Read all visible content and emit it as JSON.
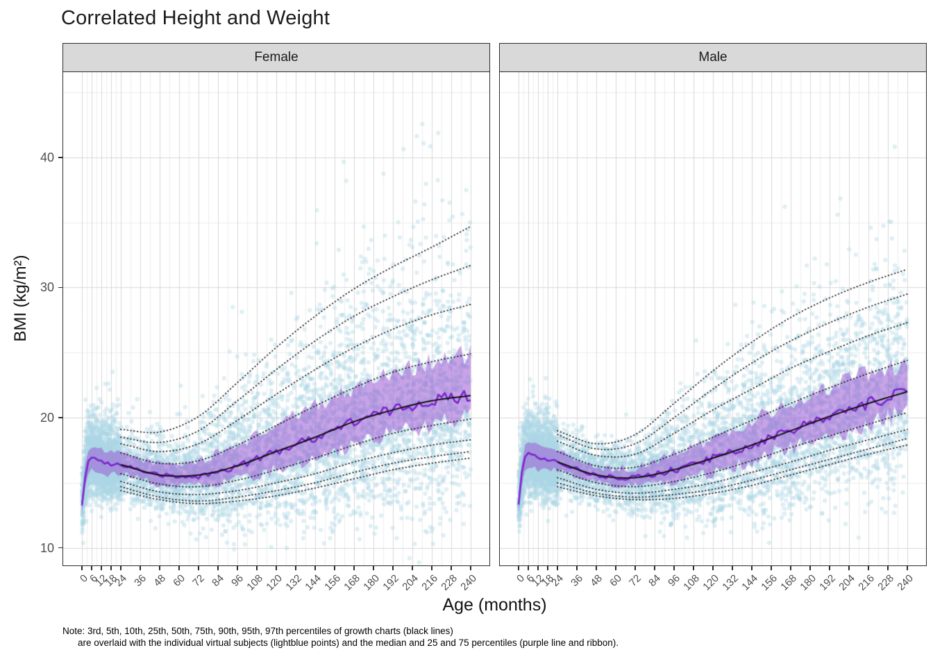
{
  "title": "Correlated Height and Weight",
  "note": {
    "line1": "Note: 3rd, 5th, 10th, 25th, 50th, 75th, 90th, 95th, 97th percentiles of growth charts (black lines)",
    "line2": "are overlaid with the individual virtual subjects (lightblue points) and the median and 25 and 75 percentiles (purple line and ribbon)."
  },
  "chart_data": {
    "type": "scatter",
    "title": "Correlated Height and Weight",
    "xlabel": "Age (months)",
    "ylabel": "BMI (kg/m²)",
    "facets": [
      "Female",
      "Male"
    ],
    "legend": "none",
    "grid": true,
    "x_ticks": [
      0,
      6,
      12,
      18,
      24,
      36,
      48,
      60,
      72,
      84,
      96,
      108,
      120,
      132,
      144,
      156,
      168,
      180,
      192,
      204,
      216,
      228,
      240
    ],
    "y_ticks": [
      10,
      20,
      30,
      40
    ],
    "y_minor_ticks": [
      15,
      25,
      35,
      45
    ],
    "xlim": [
      -12,
      252
    ],
    "ylim": [
      8.6,
      46.6
    ],
    "percentile_labels": [
      "3rd",
      "5th",
      "10th",
      "25th",
      "50th",
      "75th",
      "90th",
      "95th",
      "97th"
    ],
    "percentile_keys": [
      "P3",
      "P5",
      "P10",
      "P25",
      "P50",
      "P75",
      "P90",
      "P95",
      "P97"
    ],
    "percentile_ages": [
      24,
      48,
      72,
      96,
      120,
      144,
      168,
      192,
      216,
      240
    ],
    "percentiles": {
      "Female": {
        "P3": [
          14.4,
          13.7,
          13.4,
          13.6,
          14.0,
          14.6,
          15.3,
          16.0,
          16.5,
          16.9
        ],
        "P5": [
          14.7,
          13.9,
          13.6,
          13.9,
          14.4,
          15.0,
          15.8,
          16.5,
          17.0,
          17.4
        ],
        "P10": [
          15.1,
          14.3,
          14.1,
          14.4,
          15.0,
          15.7,
          16.6,
          17.3,
          17.9,
          18.3
        ],
        "P25": [
          15.7,
          14.9,
          14.7,
          15.2,
          16.0,
          16.9,
          17.9,
          18.8,
          19.4,
          19.9
        ],
        "P50": [
          16.4,
          15.6,
          15.6,
          16.3,
          17.4,
          18.5,
          19.7,
          20.6,
          21.3,
          21.7
        ],
        "P75": [
          17.3,
          16.5,
          16.7,
          17.9,
          19.4,
          20.9,
          22.3,
          23.5,
          24.3,
          24.9
        ],
        "P90": [
          18.0,
          17.4,
          18.0,
          19.8,
          21.8,
          23.7,
          25.4,
          26.8,
          27.9,
          28.7
        ],
        "P95": [
          18.5,
          18.1,
          19.0,
          21.3,
          23.7,
          25.9,
          27.8,
          29.3,
          30.6,
          31.7
        ],
        "P97": [
          19.1,
          18.9,
          20.1,
          22.7,
          25.4,
          27.8,
          29.9,
          31.6,
          33.1,
          34.7
        ]
      },
      "Male": {
        "P3": [
          14.7,
          14.0,
          13.7,
          13.8,
          14.2,
          14.8,
          15.6,
          16.4,
          17.2,
          17.9
        ],
        "P5": [
          15.0,
          14.2,
          13.9,
          14.1,
          14.5,
          15.2,
          16.0,
          16.8,
          17.6,
          18.4
        ],
        "P10": [
          15.4,
          14.5,
          14.2,
          14.5,
          15.0,
          15.8,
          16.6,
          17.5,
          18.3,
          19.1
        ],
        "P25": [
          16.0,
          15.0,
          14.7,
          15.1,
          15.8,
          16.7,
          17.7,
          18.6,
          19.5,
          20.4
        ],
        "P50": [
          16.6,
          15.6,
          15.4,
          16.0,
          16.9,
          17.9,
          19.0,
          20.1,
          21.1,
          22.0
        ],
        "P75": [
          17.4,
          16.3,
          16.2,
          17.2,
          18.5,
          19.8,
          21.1,
          22.3,
          23.4,
          24.4
        ],
        "P90": [
          18.2,
          17.1,
          17.2,
          18.8,
          20.6,
          22.2,
          23.8,
          25.1,
          26.3,
          27.3
        ],
        "P95": [
          18.7,
          17.6,
          18.0,
          20.0,
          22.2,
          24.2,
          25.9,
          27.3,
          28.5,
          29.5
        ],
        "P97": [
          19.0,
          18.0,
          18.7,
          21.1,
          23.6,
          25.8,
          27.7,
          29.2,
          30.4,
          31.4
        ]
      }
    },
    "sim_ages": [
      0,
      3,
      6,
      9,
      12,
      18,
      24,
      48,
      72,
      96,
      120,
      144,
      168,
      192,
      216,
      240
    ],
    "sim": {
      "Female": {
        "median": [
          13.2,
          16.3,
          16.9,
          16.8,
          16.6,
          16.4,
          16.4,
          15.6,
          15.5,
          16.3,
          17.4,
          18.5,
          19.7,
          20.6,
          21.3,
          21.7
        ],
        "q25": [
          12.4,
          15.4,
          16.0,
          15.9,
          15.7,
          15.6,
          15.7,
          14.9,
          14.7,
          15.2,
          16.0,
          16.9,
          17.9,
          18.8,
          19.4,
          19.9
        ],
        "q75": [
          14.0,
          17.2,
          17.8,
          17.7,
          17.5,
          17.3,
          17.3,
          16.5,
          16.7,
          17.9,
          19.4,
          20.9,
          22.3,
          23.5,
          24.3,
          24.9
        ]
      },
      "Male": {
        "median": [
          13.4,
          16.6,
          17.2,
          17.1,
          16.9,
          16.7,
          16.6,
          15.6,
          15.4,
          16.0,
          16.9,
          17.9,
          19.0,
          20.1,
          21.1,
          22.0
        ],
        "q25": [
          12.6,
          15.7,
          16.3,
          16.2,
          16.0,
          15.9,
          16.0,
          15.0,
          14.7,
          15.1,
          15.8,
          16.7,
          17.7,
          18.6,
          19.5,
          20.4
        ],
        "q75": [
          14.2,
          17.5,
          18.1,
          18.0,
          17.8,
          17.6,
          17.4,
          16.3,
          16.2,
          17.2,
          18.5,
          19.8,
          21.1,
          22.3,
          23.4,
          24.4
        ]
      }
    },
    "points": {
      "per_facet": 6000,
      "seed": 7,
      "infant_fraction": 0.3,
      "color": "#ADD8E6",
      "alpha": 0.4,
      "radius": 3.1
    },
    "colors": {
      "ribbon": "#9B59D3",
      "ribbon_alpha": 0.55,
      "median_line": "#7D26CD",
      "percentile_line": "#1a1a1a",
      "grid_major": "#d8d8d8",
      "grid_minor": "#eeeeee",
      "strip_bg": "#d9d9d9",
      "panel_border": "#2b2b2b",
      "axis_text": "#4d4d4d",
      "text": "#1a1a1a"
    }
  }
}
